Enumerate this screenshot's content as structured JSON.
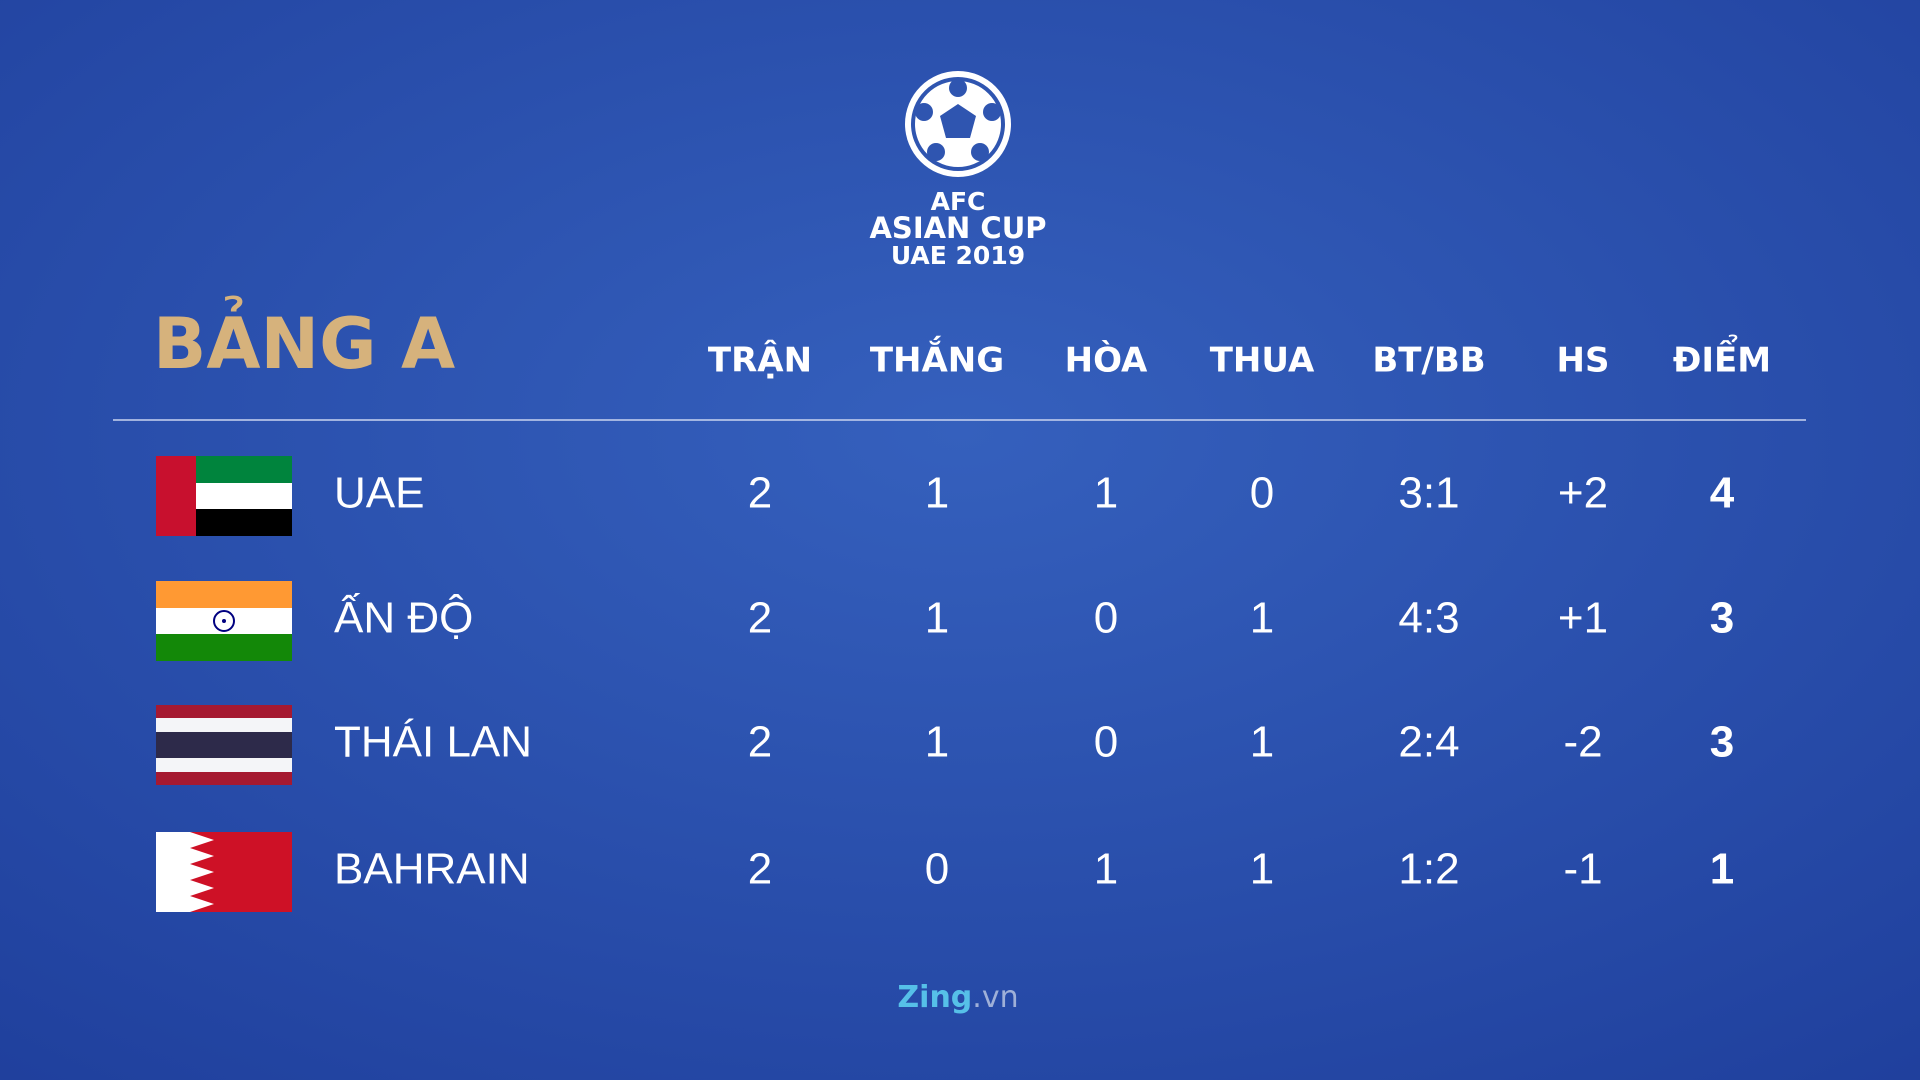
{
  "logo": {
    "line1": "AFC",
    "line2": "ASIAN CUP",
    "line3": "UAE 2019"
  },
  "table": {
    "title": "BẢNG A",
    "columns": [
      "TRẬN",
      "THẮNG",
      "HÒA",
      "THUA",
      "BT/BB",
      "HS",
      "ĐIỂM"
    ],
    "rows": [
      {
        "team": "UAE",
        "cells": [
          "2",
          "1",
          "1",
          "0",
          "3:1",
          "+2",
          "4"
        ]
      },
      {
        "team": "ẤN ĐỘ",
        "cells": [
          "2",
          "1",
          "0",
          "1",
          "4:3",
          "+1",
          "3"
        ]
      },
      {
        "team": "THÁI LAN",
        "cells": [
          "2",
          "1",
          "0",
          "1",
          "2:4",
          "-2",
          "3"
        ]
      },
      {
        "team": "BAHRAIN",
        "cells": [
          "2",
          "0",
          "1",
          "1",
          "1:2",
          "-1",
          "1"
        ]
      }
    ]
  },
  "footer": {
    "brand": "Zing",
    "domain": ".vn"
  }
}
